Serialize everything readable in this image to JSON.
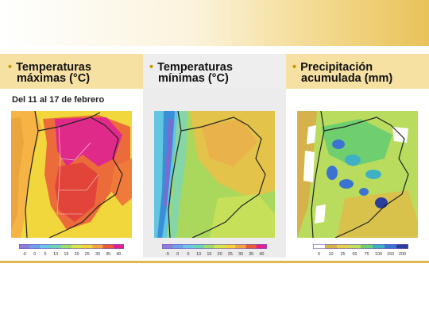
{
  "panels": [
    {
      "title_line1": "Temperaturas",
      "title_line2": "máximas (°C)",
      "subtitle": "Del 11 al 17 de febrero",
      "scale_labels": [
        "-5",
        "0",
        "5",
        "10",
        "15",
        "20",
        "25",
        "30",
        "35",
        "40"
      ],
      "scale_colors": [
        "#8e7fd6",
        "#6fa0e8",
        "#6cc7e6",
        "#70d3b4",
        "#9fdc6a",
        "#d9e64a",
        "#f4d43b",
        "#f2a443",
        "#ea5b3a",
        "#e0218f"
      ]
    },
    {
      "title_line1": "Temperaturas",
      "title_line2": "mínimas (°C)",
      "scale_labels": [
        "-5",
        "0",
        "5",
        "10",
        "15",
        "20",
        "25",
        "30",
        "35",
        "40"
      ],
      "scale_colors": [
        "#8e7fd6",
        "#6fa0e8",
        "#6cc7e6",
        "#70d3b4",
        "#9fdc6a",
        "#d9e64a",
        "#f4d43b",
        "#f2a443",
        "#ea5b3a",
        "#e0218f"
      ]
    },
    {
      "title_line1": "Precipitación",
      "title_line2": "acumulada (mm)",
      "scale_labels": [
        "0",
        "10",
        "25",
        "50",
        "75",
        "100",
        "150",
        "200"
      ],
      "scale_colors": [
        "#ffffff",
        "#d6b24a",
        "#e2d24c",
        "#bfe05a",
        "#6fcf6f",
        "#3fb0c4",
        "#3a74d0",
        "#2a3f9a"
      ]
    }
  ],
  "colors": {
    "accent_gold": "#e2b84e",
    "bullet": "#c8960a"
  }
}
